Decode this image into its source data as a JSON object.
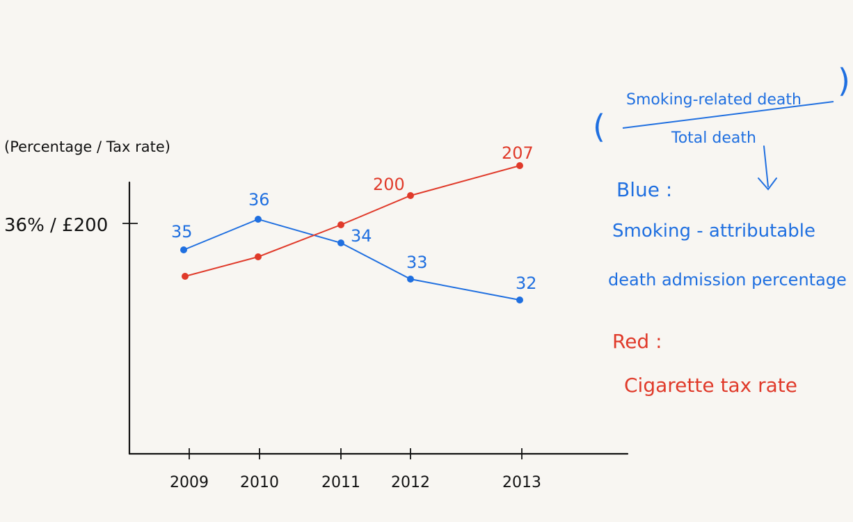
{
  "chart_data": {
    "type": "line",
    "ylabel": "(Percentage / Tax rate)",
    "y_tick_label": "36% / £200",
    "categories": [
      "2009",
      "2010",
      "2011",
      "2012",
      "2013"
    ],
    "series": [
      {
        "name": "Blue",
        "color": "#1f6fe0",
        "x": [
          "2009",
          "2010",
          "2011",
          "2012",
          "2013"
        ],
        "values": [
          35,
          36,
          34,
          33,
          32
        ],
        "labels": [
          "35",
          "36",
          "34",
          "33",
          "32"
        ]
      },
      {
        "name": "Red",
        "color": "#e03a2a",
        "x": [
          "2009",
          "2010",
          "2011",
          "2012",
          "2013"
        ],
        "values": [
          null,
          null,
          null,
          200,
          207
        ],
        "labels": [
          "",
          "",
          "",
          "200",
          "207"
        ]
      }
    ],
    "legend": {
      "blue_title": "Blue :",
      "blue_text_line1": "Smoking - attributable",
      "blue_text_line2": "death admission percentage",
      "red_title": "Red :",
      "red_text": "Cigarette tax rate",
      "fraction_numerator": "Smoking-related death",
      "fraction_denominator": "Total death"
    }
  }
}
